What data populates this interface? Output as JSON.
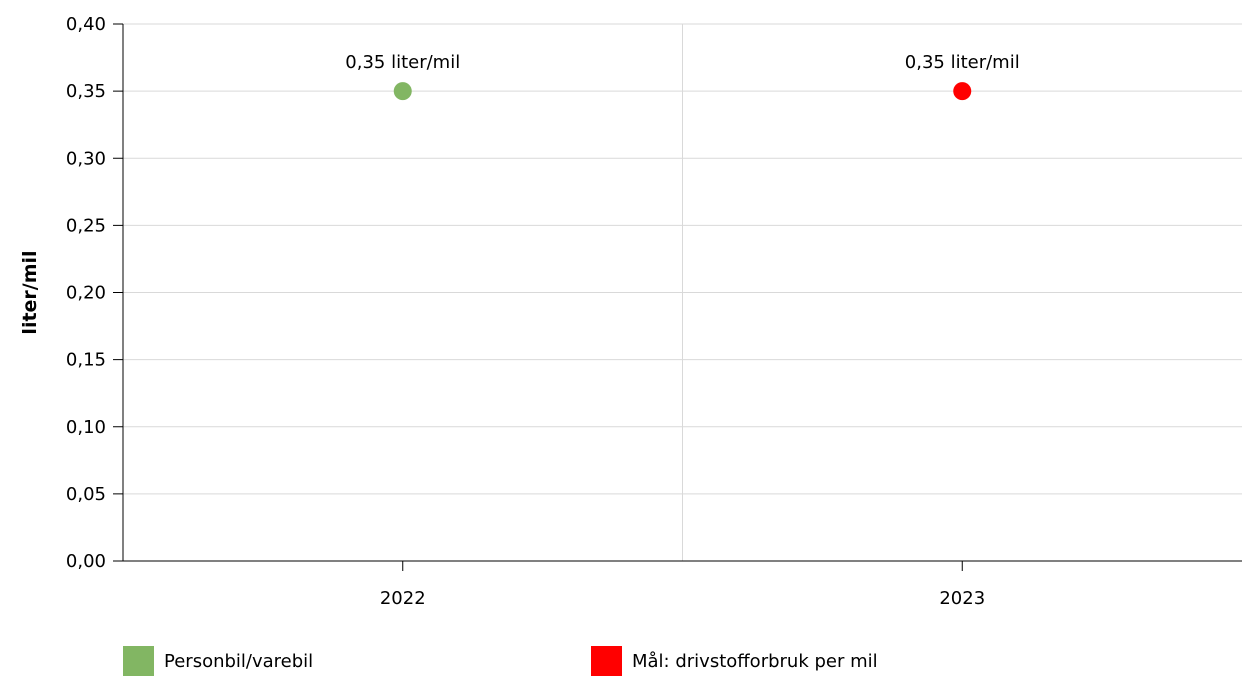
{
  "chart_data": {
    "type": "scatter",
    "categories": [
      "2022",
      "2023"
    ],
    "ylabel": "liter/mil",
    "xlabel": "",
    "title": "",
    "ylim": [
      0,
      0.4
    ],
    "yticks": [
      "0,00",
      "0,05",
      "0,10",
      "0,15",
      "0,20",
      "0,25",
      "0,30",
      "0,35",
      "0,40"
    ],
    "ytick_values": [
      0,
      0.05,
      0.1,
      0.15,
      0.2,
      0.25,
      0.3,
      0.35,
      0.4
    ],
    "grid": true,
    "legend_position": "bottom",
    "series": [
      {
        "name": "Personbil/varebil",
        "color": "#82b663",
        "points": [
          {
            "x": "2022",
            "y": 0.35,
            "label": "0,35 liter/mil"
          }
        ]
      },
      {
        "name": "Mål: drivstofforbruk per mil",
        "color": "#ff0000",
        "points": [
          {
            "x": "2023",
            "y": 0.35,
            "label": "0,35 liter/mil"
          }
        ]
      }
    ]
  }
}
